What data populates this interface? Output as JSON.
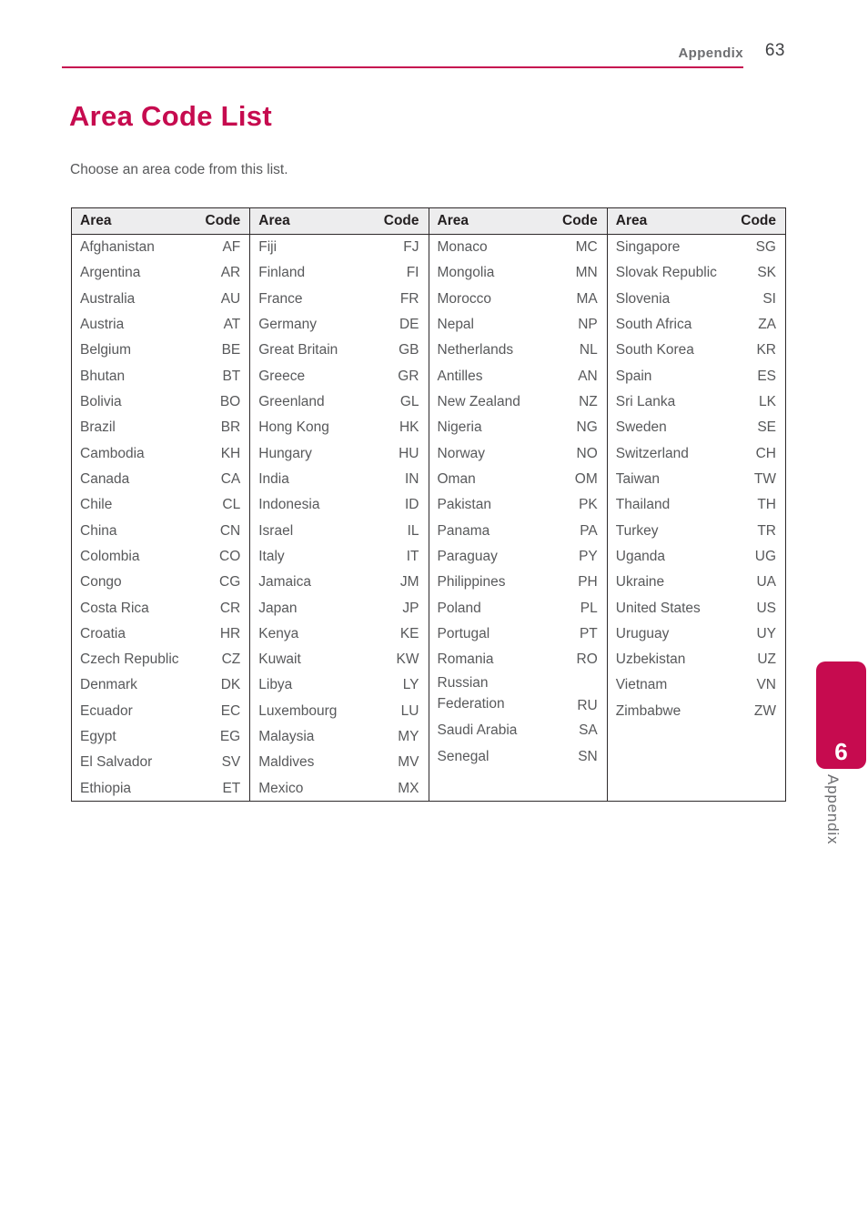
{
  "header": {
    "section_label": "Appendix",
    "page_number": "63"
  },
  "title": "Area Code List",
  "subtitle": "Choose an area code from this list.",
  "side_tab": {
    "chapter_number": "6",
    "label": "Appendix"
  },
  "colors": {
    "accent": "#C60B4F",
    "body_text": "#58595B",
    "header_text": "#231F20",
    "muted_text": "#6D6E71",
    "table_header_bg": "#EDEDEE",
    "table_border": "#2E2A2B"
  },
  "table": {
    "column_headers": {
      "area": "Area",
      "code": "Code"
    },
    "columns": [
      {
        "entries": [
          {
            "area": "Afghanistan",
            "code": "AF"
          },
          {
            "area": "Argentina",
            "code": "AR"
          },
          {
            "area": "Australia",
            "code": "AU"
          },
          {
            "area": "Austria",
            "code": "AT"
          },
          {
            "area": "Belgium",
            "code": "BE"
          },
          {
            "area": "Bhutan",
            "code": "BT"
          },
          {
            "area": "Bolivia",
            "code": "BO"
          },
          {
            "area": "Brazil",
            "code": "BR"
          },
          {
            "area": "Cambodia",
            "code": "KH"
          },
          {
            "area": "Canada",
            "code": "CA"
          },
          {
            "area": "Chile",
            "code": "CL"
          },
          {
            "area": "China",
            "code": "CN"
          },
          {
            "area": "Colombia",
            "code": "CO"
          },
          {
            "area": "Congo",
            "code": "CG"
          },
          {
            "area": "Costa Rica",
            "code": "CR"
          },
          {
            "area": "Croatia",
            "code": "HR"
          },
          {
            "area": "Czech Republic",
            "code": "CZ"
          },
          {
            "area": "Denmark",
            "code": "DK"
          },
          {
            "area": "Ecuador",
            "code": "EC"
          },
          {
            "area": "Egypt",
            "code": "EG"
          },
          {
            "area": "El Salvador",
            "code": "SV"
          },
          {
            "area": "Ethiopia",
            "code": "ET"
          }
        ]
      },
      {
        "entries": [
          {
            "area": "Fiji",
            "code": "FJ"
          },
          {
            "area": "Finland",
            "code": "FI"
          },
          {
            "area": "France",
            "code": "FR"
          },
          {
            "area": "Germany",
            "code": "DE"
          },
          {
            "area": "Great Britain",
            "code": "GB"
          },
          {
            "area": "Greece",
            "code": "GR"
          },
          {
            "area": "Greenland",
            "code": "GL"
          },
          {
            "area": "Hong Kong",
            "code": "HK"
          },
          {
            "area": "Hungary",
            "code": "HU"
          },
          {
            "area": "India",
            "code": "IN"
          },
          {
            "area": "Indonesia",
            "code": "ID"
          },
          {
            "area": "Israel",
            "code": "IL"
          },
          {
            "area": "Italy",
            "code": "IT"
          },
          {
            "area": "Jamaica",
            "code": "JM"
          },
          {
            "area": "Japan",
            "code": "JP"
          },
          {
            "area": "Kenya",
            "code": "KE"
          },
          {
            "area": "Kuwait",
            "code": "KW"
          },
          {
            "area": "Libya",
            "code": "LY"
          },
          {
            "area": "Luxembourg",
            "code": "LU"
          },
          {
            "area": "Malaysia",
            "code": "MY"
          },
          {
            "area": "Maldives",
            "code": "MV"
          },
          {
            "area": "Mexico",
            "code": "MX"
          }
        ]
      },
      {
        "entries": [
          {
            "area": "Monaco",
            "code": "MC"
          },
          {
            "area": "Mongolia",
            "code": "MN"
          },
          {
            "area": "Morocco",
            "code": "MA"
          },
          {
            "area": "Nepal",
            "code": "NP"
          },
          {
            "area": "Netherlands",
            "code": "NL"
          },
          {
            "area": "Antilles",
            "code": "AN"
          },
          {
            "area": "New Zealand",
            "code": "NZ"
          },
          {
            "area": "Nigeria",
            "code": "NG"
          },
          {
            "area": "Norway",
            "code": "NO"
          },
          {
            "area": "Oman",
            "code": "OM"
          },
          {
            "area": "Pakistan",
            "code": "PK"
          },
          {
            "area": "Panama",
            "code": "PA"
          },
          {
            "area": "Paraguay",
            "code": "PY"
          },
          {
            "area": "Philippines",
            "code": "PH"
          },
          {
            "area": "Poland",
            "code": "PL"
          },
          {
            "area": "Portugal",
            "code": "PT"
          },
          {
            "area": "Romania",
            "code": "RO"
          },
          {
            "area": "Russian Federation",
            "code": "RU",
            "wrap": true
          },
          {
            "area": "Saudi Arabia",
            "code": "SA"
          },
          {
            "area": "Senegal",
            "code": "SN"
          }
        ]
      },
      {
        "entries": [
          {
            "area": "Singapore",
            "code": "SG"
          },
          {
            "area": "Slovak Republic",
            "code": "SK"
          },
          {
            "area": "Slovenia",
            "code": "SI"
          },
          {
            "area": "South Africa",
            "code": "ZA"
          },
          {
            "area": "South Korea",
            "code": "KR"
          },
          {
            "area": "Spain",
            "code": "ES"
          },
          {
            "area": "Sri Lanka",
            "code": "LK"
          },
          {
            "area": "Sweden",
            "code": "SE"
          },
          {
            "area": "Switzerland",
            "code": "CH"
          },
          {
            "area": "Taiwan",
            "code": "TW"
          },
          {
            "area": "Thailand",
            "code": "TH"
          },
          {
            "area": "Turkey",
            "code": "TR"
          },
          {
            "area": "Uganda",
            "code": "UG"
          },
          {
            "area": "Ukraine",
            "code": "UA"
          },
          {
            "area": "United States",
            "code": "US"
          },
          {
            "area": "Uruguay",
            "code": "UY"
          },
          {
            "area": "Uzbekistan",
            "code": "UZ"
          },
          {
            "area": "Vietnam",
            "code": "VN"
          },
          {
            "area": "Zimbabwe",
            "code": "ZW"
          }
        ]
      }
    ]
  }
}
